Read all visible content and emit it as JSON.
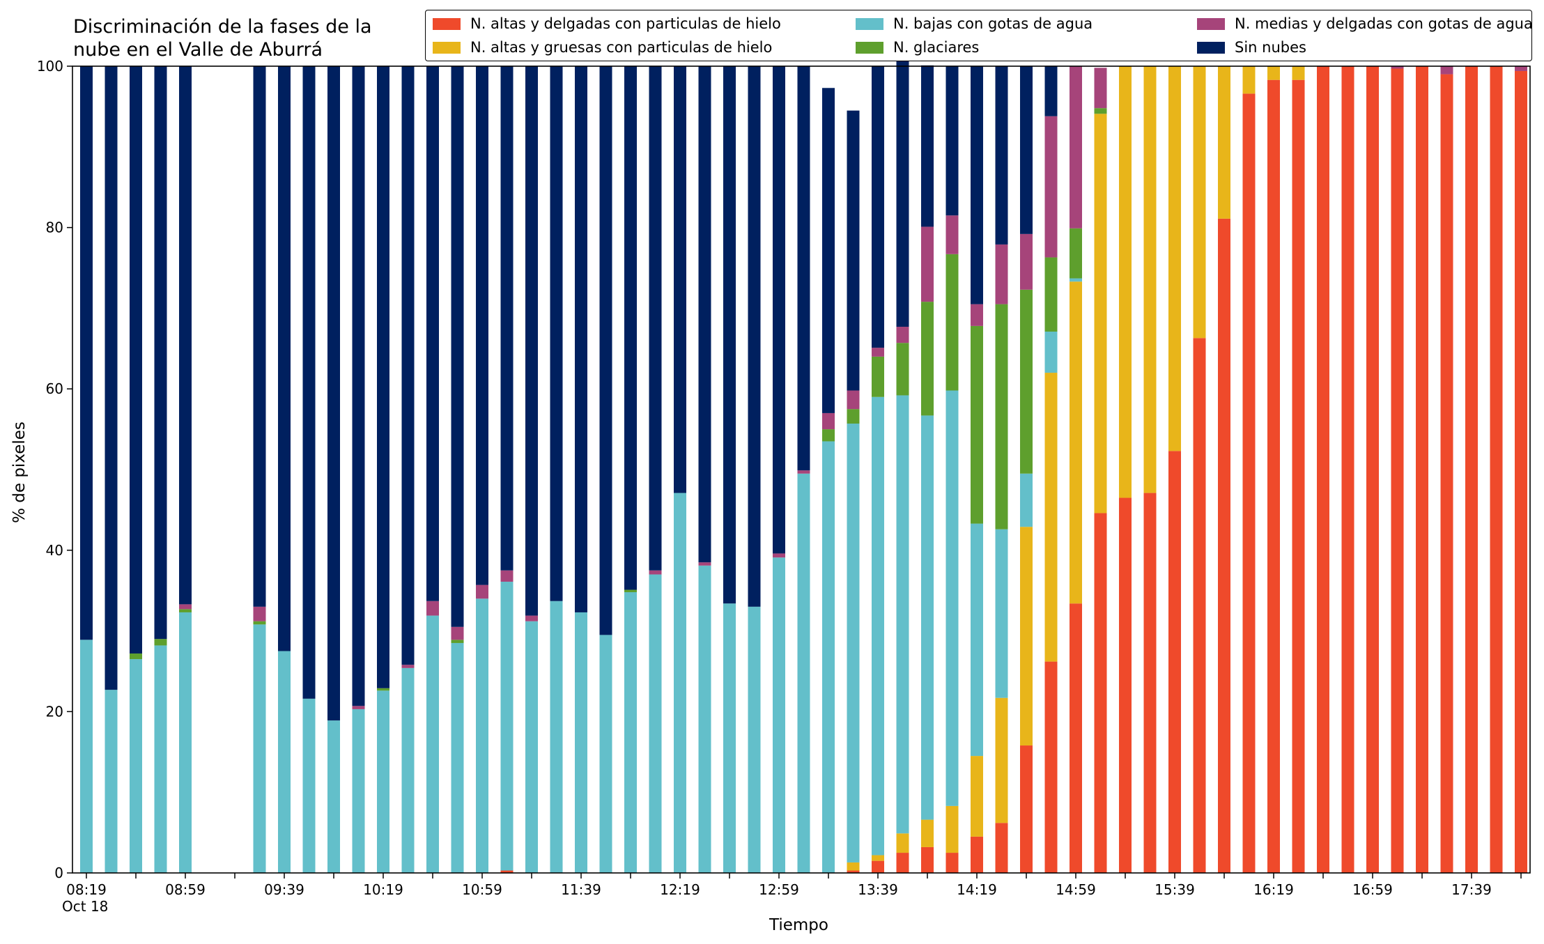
{
  "chart_data": {
    "type": "bar",
    "stacked": true,
    "title_lines": [
      "Discriminación de la fases de la",
      "nube en el Valle de Aburrá"
    ],
    "xlabel": "Tiempo",
    "ylabel": "% de pixeles",
    "ylim": [
      0,
      100
    ],
    "yticks": [
      0,
      20,
      40,
      60,
      80,
      100
    ],
    "grid": false,
    "legend_position": "top-right",
    "x_start": "08:19",
    "x_step_minutes": 10,
    "x_tick_labels": [
      "08:19",
      "08:59",
      "09:39",
      "10:19",
      "10:59",
      "11:39",
      "12:19",
      "12:59",
      "13:39",
      "14:19",
      "14:59",
      "15:39",
      "16:19",
      "16:59",
      "17:39"
    ],
    "x_date_label": "Oct 18",
    "series": [
      {
        "name": "N. altas y delgadas con particulas de hielo",
        "color": "#ef4a2b",
        "values": [
          0,
          0,
          0,
          0,
          0,
          0,
          null,
          0,
          0,
          0,
          0,
          0,
          0,
          0,
          0,
          0,
          0,
          0.3,
          0,
          0,
          0,
          0,
          0,
          0,
          0,
          0,
          0,
          0,
          0,
          0,
          0,
          0.3,
          1.5,
          2.5,
          3.2,
          2.5,
          4.5,
          6.2,
          15.8,
          26.2,
          33.4,
          44.6,
          46.5,
          47.1,
          52.3,
          66.3,
          81.1,
          96.6,
          98.3,
          98.3,
          100,
          100,
          100,
          99.7,
          100,
          99,
          100,
          100,
          99.4
        ]
      },
      {
        "name": "N. altas y gruesas con particulas de hielo",
        "color": "#e8b51a",
        "values": [
          0,
          0,
          0,
          0,
          0,
          0,
          null,
          0,
          0,
          0,
          0,
          0,
          0,
          0,
          0,
          0,
          0,
          0,
          0,
          0,
          0,
          0,
          0,
          0,
          0,
          0,
          0,
          0,
          0,
          0,
          0,
          1,
          0.7,
          2.4,
          3.4,
          5.8,
          10,
          15.5,
          27.1,
          35.8,
          39.9,
          49.5,
          53.5,
          52.9,
          47.7,
          33.7,
          18.9,
          3.4,
          1.7,
          1.7,
          0,
          0,
          0,
          0,
          0,
          0,
          0,
          0,
          0
        ]
      },
      {
        "name": "N. bajas con gotas de agua",
        "color": "#63bfca",
        "values": [
          28.9,
          22.7,
          26.5,
          28.2,
          32.3,
          null,
          null,
          30.8,
          27.5,
          21.6,
          18.9,
          20.3,
          22.6,
          25.4,
          31.9,
          28.5,
          34,
          35.8,
          31.2,
          33.7,
          32.3,
          29.5,
          34.8,
          37,
          47.1,
          38.1,
          33.4,
          33,
          39.1,
          49.5,
          53.5,
          54.4,
          56.8,
          54.3,
          50.1,
          51.5,
          28.8,
          20.9,
          6.6,
          5.1,
          0.4,
          0,
          0,
          0,
          0,
          0,
          0,
          0,
          0,
          0,
          0,
          0,
          0,
          0,
          0,
          0,
          0,
          0,
          0
        ]
      },
      {
        "name": "N. glaciares",
        "color": "#5e9f2d",
        "values": [
          0,
          0,
          0.7,
          0.8,
          0.4,
          null,
          null,
          0.4,
          0,
          0,
          0,
          0,
          0.3,
          0,
          0,
          0.4,
          0,
          0,
          0,
          0,
          0,
          0,
          0.3,
          0,
          0,
          0,
          0,
          0,
          0,
          0,
          1.5,
          1.8,
          5,
          6.5,
          14.1,
          16.9,
          24.5,
          27.9,
          22.8,
          9.2,
          6.2,
          0.7,
          0,
          0,
          0,
          0,
          0,
          0,
          0,
          0,
          0,
          0,
          0,
          0,
          0,
          0,
          0,
          0,
          0
        ]
      },
      {
        "name": "N. medias y delgadas con gotas de agua",
        "color": "#a6447a",
        "values": [
          0,
          0,
          0,
          0,
          0.6,
          null,
          null,
          1.8,
          0,
          0,
          0,
          0.4,
          0,
          0.4,
          1.8,
          1.6,
          1.7,
          1.4,
          0.7,
          0,
          0,
          0,
          0,
          0.5,
          0,
          0.4,
          0,
          0,
          0.5,
          0.4,
          2,
          2.3,
          1.1,
          2,
          9.3,
          4.8,
          2.7,
          7.4,
          6.9,
          17.5,
          20.1,
          5,
          0,
          0,
          0,
          0,
          0,
          0,
          0,
          0,
          0,
          0,
          0,
          0.3,
          0,
          1,
          0,
          0,
          0.6
        ]
      },
      {
        "name": "Sin nubes",
        "color": "#00205f",
        "values": [
          71.1,
          77.3,
          72.8,
          71,
          66.7,
          null,
          null,
          67,
          72.5,
          78.4,
          81.1,
          79.3,
          77.1,
          74.2,
          66.3,
          69.5,
          64.3,
          62.5,
          68.1,
          66.3,
          67.7,
          70.5,
          64.9,
          62.5,
          52.9,
          61.5,
          66.6,
          67,
          60.4,
          50.1,
          40.3,
          34.7,
          34.9,
          33,
          20,
          18.5,
          29.5,
          22.1,
          20.8,
          6.2,
          0,
          0,
          0,
          0,
          0,
          0,
          0,
          0,
          0,
          0,
          0,
          0,
          0,
          0,
          0,
          0,
          0,
          0,
          0
        ]
      }
    ]
  }
}
